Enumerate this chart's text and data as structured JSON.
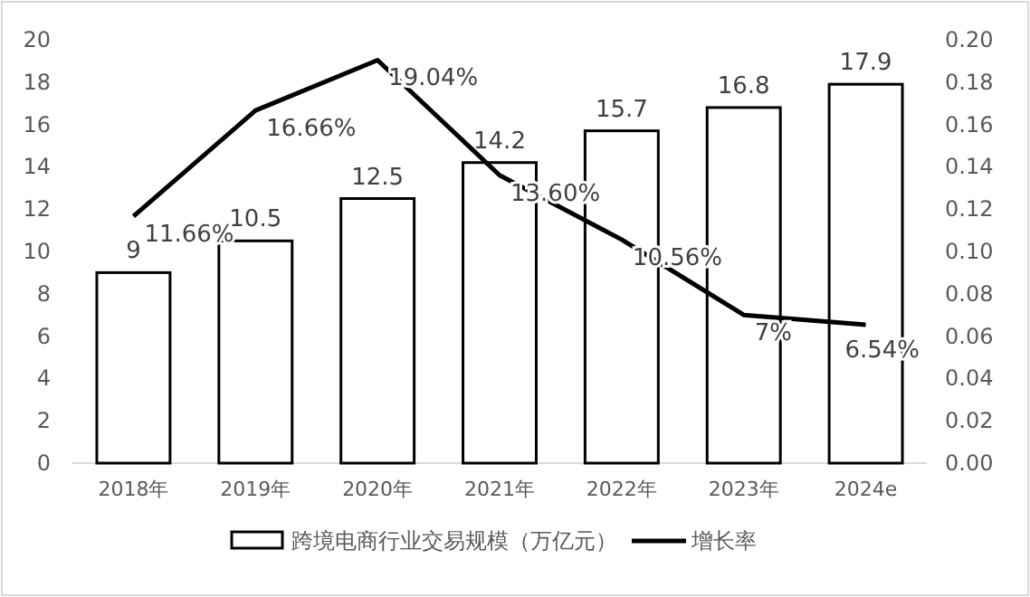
{
  "chart_data": {
    "type": "bar",
    "categories": [
      "2018年",
      "2019年",
      "2020年",
      "2021年",
      "2022年",
      "2023年",
      "2024e"
    ],
    "series": [
      {
        "name": "跨境电商行业交易规模（万亿元）",
        "color": "#ffffff",
        "values": [
          9,
          10.5,
          12.5,
          14.2,
          15.7,
          16.8,
          17.9
        ],
        "value_labels": [
          "9",
          "10.5",
          "12.5",
          "14.2",
          "15.7",
          "16.8",
          "17.9"
        ]
      },
      {
        "name": "增长率",
        "type": "line",
        "axis": "y2",
        "color": "#000000",
        "values": [
          0.1166,
          0.1666,
          0.1904,
          0.136,
          0.1056,
          0.07,
          0.0654
        ],
        "value_labels": [
          "11.66%",
          "16.66%",
          "19.04%",
          "13.60%",
          "10.56%",
          "7%",
          "6.54%"
        ]
      }
    ],
    "ylim": [
      0,
      20
    ],
    "yticks": [
      0,
      2,
      4,
      6,
      8,
      10,
      12,
      14,
      16,
      18,
      20
    ],
    "y2lim": [
      0,
      0.2
    ],
    "y2ticks": [
      {
        "value": 0,
        "label": "0.00"
      },
      {
        "value": 0.02,
        "label": "0.02"
      },
      {
        "value": 0.04,
        "label": "0.04"
      },
      {
        "value": 0.06,
        "label": "0.06"
      },
      {
        "value": 0.08,
        "label": "0.08"
      },
      {
        "value": 0.1,
        "label": "0.10"
      },
      {
        "value": 0.12,
        "label": "0.12"
      },
      {
        "value": 0.14,
        "label": "0.14"
      },
      {
        "value": 0.16,
        "label": "0.16"
      },
      {
        "value": 0.18,
        "label": "0.18"
      },
      {
        "value": 0.2,
        "label": "0.20"
      }
    ],
    "legend": "bottom",
    "marker": "none",
    "line_style": "solid",
    "grid": false
  }
}
